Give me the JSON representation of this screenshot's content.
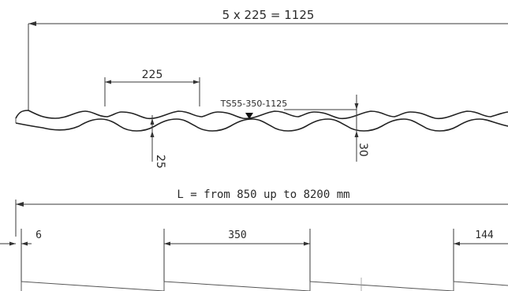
{
  "top_view": {
    "overall_dimension": "5 x 225 = 1125",
    "pitch_dimension": "225",
    "profile_name": "TS55-350-1125",
    "depth_dimension": "25",
    "height_dimension": "30"
  },
  "side_view": {
    "length_dimension": "L = from 850 up to 8200 mm",
    "start_offset": "6",
    "step_length": "350",
    "end_offset": "144"
  }
}
